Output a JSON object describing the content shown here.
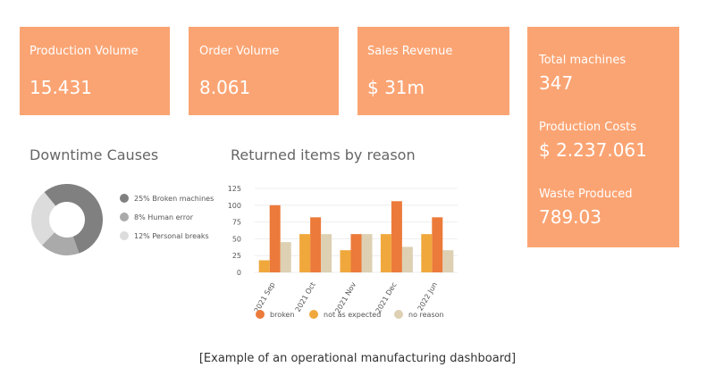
{
  "kpis": [
    {
      "label": "Production Volume",
      "value": "15.431"
    },
    {
      "label": "Order Volume",
      "value": "8.061"
    },
    {
      "label": "Sales Revenue",
      "value": "$ 31m"
    }
  ],
  "side_kpis": [
    {
      "label": "Total machines",
      "value": "347"
    },
    {
      "label": "Production Costs",
      "value": "$ 2.237.061"
    },
    {
      "label": "Waste Produced",
      "value": "789.03"
    }
  ],
  "chart_data": [
    {
      "type": "donut",
      "title": "Downtime Causes",
      "categories": [
        "25% Broken machines",
        "8% Human error",
        "12% Personal breaks"
      ],
      "values": [
        25,
        8,
        12
      ],
      "colors": [
        "#808080",
        "#aaaaaa",
        "#dcdcdc"
      ]
    },
    {
      "type": "bar",
      "title": "Returned items by reason",
      "categories": [
        "2021 Sep",
        "2021 Oct",
        "2021 Nov",
        "2021 Dec",
        "2022 Jun"
      ],
      "series": [
        {
          "name": "broken",
          "color": "#ec7a3a",
          "values": [
            100,
            82,
            57,
            106,
            82
          ]
        },
        {
          "name": "not as expected",
          "color": "#f0a83c",
          "values": [
            18,
            57,
            33,
            57,
            57
          ]
        },
        {
          "name": "no reason",
          "color": "#ddd0b3",
          "values": [
            45,
            57,
            57,
            38,
            33
          ]
        }
      ],
      "ylim": [
        0,
        125
      ],
      "yticks": [
        0,
        25,
        50,
        75,
        100,
        125
      ],
      "grid": true
    }
  ],
  "caption": "[Example of an operational manufacturing dashboard]"
}
